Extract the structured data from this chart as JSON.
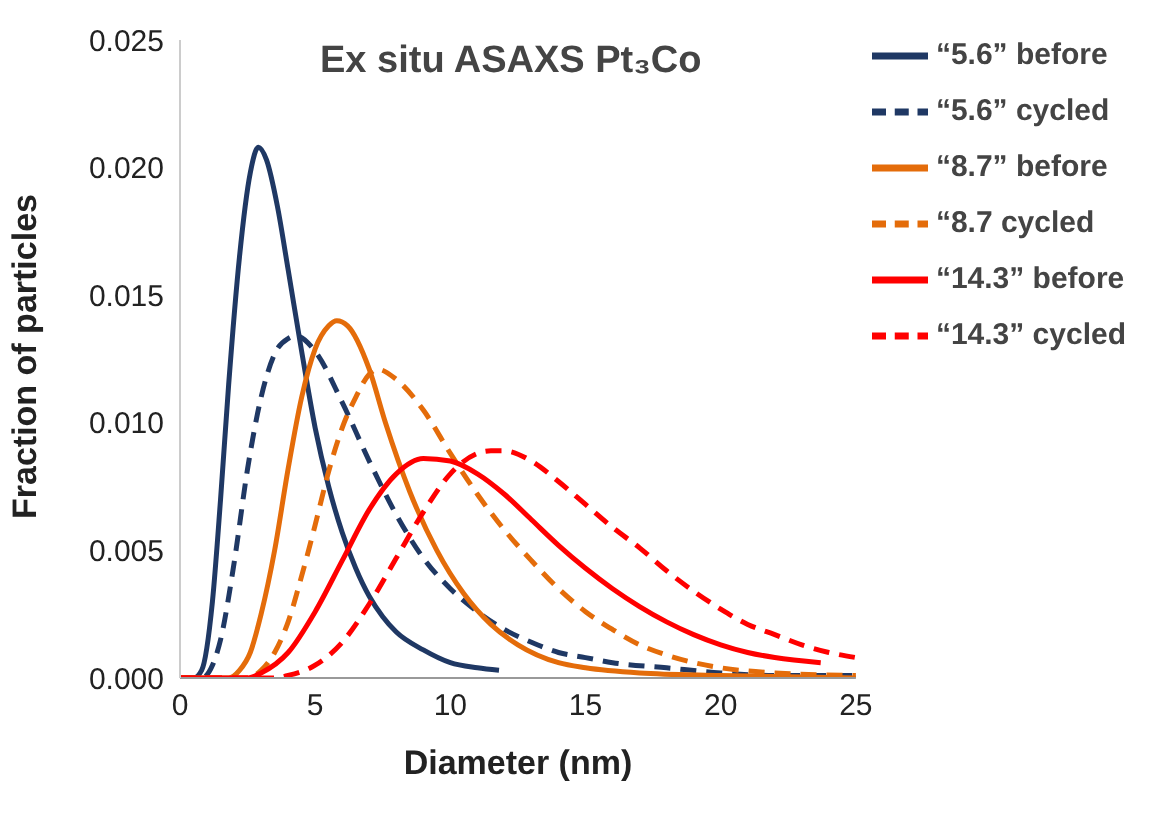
{
  "chart_data": {
    "type": "line",
    "title": "Ex situ ASAXS Pt₃Co",
    "xlabel": "Diameter (nm)",
    "ylabel": "Fraction of particles",
    "xlim": [
      0,
      25
    ],
    "xticks": [
      0,
      5,
      10,
      15,
      20,
      25
    ],
    "ylim": [
      0,
      0.025
    ],
    "yticks": [
      {
        "value": 0,
        "label": "0.000"
      },
      {
        "value": 0.005,
        "label": "0.005"
      },
      {
        "value": 0.01,
        "label": "0.010"
      },
      {
        "value": 0.015,
        "label": "0.015"
      },
      {
        "value": 0.02,
        "label": "0.020"
      },
      {
        "value": 0.025,
        "label": "0.025"
      }
    ],
    "grid": false,
    "legend": "top right",
    "marker": "none",
    "series": [
      {
        "name": "“5.6” before",
        "color": "#1f3864",
        "line_style": "solid",
        "x": [
          0,
          0.5,
          0.8,
          1.2,
          1.5,
          1.8,
          2.2,
          2.6,
          2.9,
          3.2,
          3.6,
          4,
          4.5,
          5,
          5.5,
          6,
          6.5,
          7,
          7.5,
          8,
          9,
          10,
          11,
          11.8
        ],
        "values": [
          0,
          0,
          0.0003,
          0.003,
          0.007,
          0.0115,
          0.0165,
          0.0198,
          0.0208,
          0.0203,
          0.0185,
          0.016,
          0.0128,
          0.0098,
          0.0075,
          0.0057,
          0.0043,
          0.0032,
          0.0024,
          0.0018,
          0.0011,
          0.0006,
          0.0004,
          0.0003
        ]
      },
      {
        "name": "“5.6” cycled",
        "color": "#1f3864",
        "line_style": "dashed",
        "x": [
          0,
          0.8,
          1.2,
          1.5,
          2,
          2.5,
          3,
          3.5,
          4,
          4.3,
          5,
          6,
          7,
          8,
          9,
          10,
          11,
          12,
          13,
          14,
          15,
          16,
          18,
          20,
          22,
          25
        ],
        "values": [
          0,
          0,
          0.0005,
          0.0015,
          0.0045,
          0.0082,
          0.011,
          0.0127,
          0.0133,
          0.0134,
          0.0128,
          0.0108,
          0.0085,
          0.0064,
          0.0047,
          0.0035,
          0.0026,
          0.0019,
          0.0014,
          0.001,
          0.0008,
          0.0006,
          0.0004,
          0.0002,
          0.0001,
          0.0001
        ]
      },
      {
        "name": "“8.7” before",
        "color": "#e46c0a",
        "line_style": "solid",
        "x": [
          0,
          1.8,
          2.2,
          2.6,
          3,
          3.5,
          4,
          4.5,
          5,
          5.5,
          5.8,
          6.2,
          7,
          7.6,
          8.5,
          9.5,
          10.5,
          11.5,
          12.5,
          14,
          15,
          17,
          20,
          25
        ],
        "values": [
          0,
          0,
          0.0003,
          0.001,
          0.0025,
          0.005,
          0.0082,
          0.011,
          0.0129,
          0.0138,
          0.014,
          0.0138,
          0.0121,
          0.01,
          0.0073,
          0.005,
          0.0033,
          0.0021,
          0.0013,
          0.0006,
          0.0004,
          0.0002,
          0.0001,
          0
        ]
      },
      {
        "name": "“8.7 cycled",
        "color": "#e46c0a",
        "line_style": "dashed",
        "x": [
          0,
          2.5,
          3,
          3.5,
          4,
          4.5,
          5,
          5.5,
          6,
          6.5,
          7,
          7.3,
          8,
          9,
          10,
          11,
          12,
          13,
          14,
          15,
          16,
          17,
          18,
          20,
          22,
          25
        ],
        "values": [
          0,
          0,
          0.0003,
          0.001,
          0.0022,
          0.004,
          0.006,
          0.0081,
          0.0098,
          0.011,
          0.0119,
          0.0121,
          0.0117,
          0.0105,
          0.0088,
          0.0072,
          0.0058,
          0.0046,
          0.0035,
          0.0026,
          0.0019,
          0.0013,
          0.0009,
          0.0004,
          0.0002,
          0.0001
        ]
      },
      {
        "name": "“14.3” before",
        "color": "#ff0000",
        "line_style": "solid",
        "x": [
          0,
          2.5,
          3,
          4,
          5,
          6,
          7,
          8,
          9,
          10,
          11,
          12,
          13,
          14,
          15,
          16,
          17,
          18,
          19,
          20,
          21,
          22,
          23.7
        ],
        "values": [
          0,
          0,
          0.0002,
          0.001,
          0.0026,
          0.0046,
          0.0066,
          0.008,
          0.0086,
          0.0085,
          0.008,
          0.0072,
          0.0062,
          0.0052,
          0.0043,
          0.0035,
          0.0028,
          0.0022,
          0.0017,
          0.0013,
          0.001,
          0.0008,
          0.0006
        ]
      },
      {
        "name": "“14.3” cycled",
        "color": "#ff0000",
        "line_style": "dashed",
        "x": [
          0,
          3.5,
          4,
          5,
          6,
          7,
          8,
          9,
          10,
          11,
          11.5,
          12,
          13,
          14,
          15,
          16,
          17,
          18,
          19,
          20,
          21,
          22,
          23,
          24,
          25
        ],
        "values": [
          0,
          0,
          0.0001,
          0.0005,
          0.0014,
          0.0029,
          0.0047,
          0.0065,
          0.008,
          0.0088,
          0.0089,
          0.0089,
          0.0085,
          0.0077,
          0.0068,
          0.0059,
          0.0051,
          0.0042,
          0.0034,
          0.0027,
          0.0021,
          0.0017,
          0.0013,
          0.001,
          0.0008
        ]
      }
    ]
  }
}
